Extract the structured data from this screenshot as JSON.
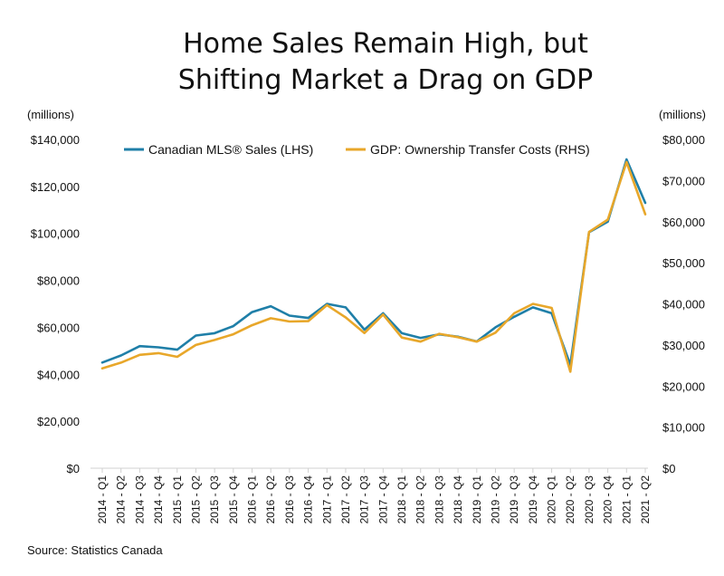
{
  "title_lines": [
    "Home Sales Remain High, but",
    "Shifting Market a Drag on GDP"
  ],
  "left_unit": "(millions)",
  "right_unit": "(millions)",
  "source": "Source: Statistics Canada",
  "colors": {
    "mls": "#1f7fa8",
    "gdp": "#e8a72a"
  },
  "chart_data": {
    "type": "line",
    "title": "Home Sales Remain High, but Shifting Market a Drag on GDP",
    "x": [
      "2014 - Q1",
      "2014 - Q2",
      "2014 - Q3",
      "2014 - Q4",
      "2015 - Q1",
      "2015 - Q2",
      "2015 - Q3",
      "2015 - Q4",
      "2016 - Q1",
      "2016 - Q2",
      "2016 - Q3",
      "2016 - Q4",
      "2017 - Q1",
      "2017 - Q2",
      "2017 - Q3",
      "2017 - Q4",
      "2018 - Q1",
      "2018 - Q2",
      "2018 - Q3",
      "2018 - Q4",
      "2019 - Q1",
      "2019 - Q2",
      "2019 - Q3",
      "2019 - Q4",
      "2020 - Q1",
      "2020 - Q2",
      "2020 - Q3",
      "2020 - Q4",
      "2021 - Q1",
      "2021 - Q2"
    ],
    "left_axis": {
      "label": "(millions)",
      "ylim": [
        0,
        140000
      ],
      "ticks": [
        0,
        20000,
        40000,
        60000,
        80000,
        100000,
        120000,
        140000
      ],
      "tick_labels": [
        "$0",
        "$20,000",
        "$40,000",
        "$60,000",
        "$80,000",
        "$100,000",
        "$120,000",
        "$140,000"
      ]
    },
    "right_axis": {
      "label": "(millions)",
      "ylim": [
        0,
        80000
      ],
      "ticks": [
        0,
        10000,
        20000,
        30000,
        40000,
        50000,
        60000,
        70000,
        80000
      ],
      "tick_labels": [
        "$0",
        "$10,000",
        "$20,000",
        "$30,000",
        "$40,000",
        "$50,000",
        "$60,000",
        "$70,000",
        "$80,000"
      ]
    },
    "legend": "top",
    "grid": false,
    "series": [
      {
        "name": "Canadian MLS® Sales (LHS)",
        "axis": "left",
        "values": [
          45000,
          48000,
          52000,
          51500,
          50500,
          56500,
          57500,
          60500,
          66500,
          69000,
          65000,
          64000,
          70000,
          68500,
          59000,
          66000,
          57500,
          55500,
          57000,
          56000,
          54000,
          60000,
          64500,
          68500,
          66000,
          44000,
          100500,
          105000,
          131500,
          113000
        ]
      },
      {
        "name": "GDP: Ownership Transfer Costs (RHS)",
        "axis": "right",
        "values": [
          24300,
          25700,
          27600,
          28000,
          27100,
          30000,
          31200,
          32600,
          34800,
          36500,
          35700,
          35800,
          39700,
          36700,
          32900,
          37400,
          31800,
          30800,
          32700,
          31900,
          30800,
          33000,
          37700,
          40000,
          39000,
          23500,
          57500,
          60500,
          74500,
          61800
        ]
      }
    ]
  }
}
